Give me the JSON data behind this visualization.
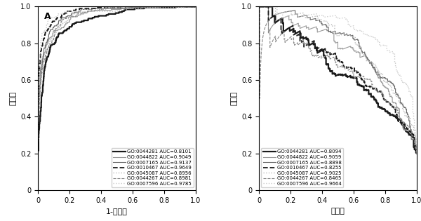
{
  "left_label": "A",
  "left_xlabel": "1-特异性",
  "left_ylabel": "敏感性",
  "right_xlabel": "召回率",
  "right_ylabel": "精确度",
  "curves": [
    {
      "go": "0044281",
      "color": "#1a1a1a",
      "linestyle": "solid",
      "lw": 1.6,
      "auc_roc": 0.8101,
      "auc_pr": 0.8094,
      "seed": 10
    },
    {
      "go": "0044822",
      "color": "#999999",
      "linestyle": "solid",
      "lw": 0.8,
      "auc_roc": 0.9049,
      "auc_pr": 0.9059,
      "seed": 20
    },
    {
      "go": "0007165",
      "color": "#666666",
      "linestyle": "solid",
      "lw": 0.8,
      "auc_roc": 0.9137,
      "auc_pr": 0.8898,
      "seed": 30
    },
    {
      "go": "0010467",
      "color": "#1a1a1a",
      "linestyle": "dashed",
      "lw": 1.3,
      "auc_roc": 0.9649,
      "auc_pr": 0.8255,
      "seed": 40
    },
    {
      "go": "0045087",
      "color": "#bbbbbb",
      "linestyle": "dotted",
      "lw": 1.0,
      "auc_roc": 0.8956,
      "auc_pr": 0.9025,
      "seed": 50
    },
    {
      "go": "0044267",
      "color": "#888888",
      "linestyle": "dashed",
      "lw": 0.8,
      "auc_roc": 0.8981,
      "auc_pr": 0.8465,
      "seed": 60
    },
    {
      "go": "0007596",
      "color": "#cccccc",
      "linestyle": "dotted",
      "lw": 1.0,
      "auc_roc": 0.9785,
      "auc_pr": 0.9664,
      "seed": 70
    }
  ],
  "legend_roc_labels": [
    "GO:0044281 AUC=0.8101",
    "GO:0044822 AUC=0.9049",
    "GO:0007165 AUC=0.9137",
    "GO:0010467 AUC=0.9649",
    "GO:0045087 AUC=0.8956",
    "GO:0044267 AUC=0.8981",
    "GO:0007596 AUC=0.9785"
  ],
  "legend_pr_labels": [
    "GO:0044281 AUC=0.8094",
    "GO:0044822 AUC=0.9059",
    "GO:0007165 AUC=0.8898",
    "GO:0010467 AUC=0.8255",
    "GO:0045087 AUC=0.9025",
    "GO:0044267 AUC=0.8465",
    "GO:0007596 AUC=0.9664"
  ]
}
